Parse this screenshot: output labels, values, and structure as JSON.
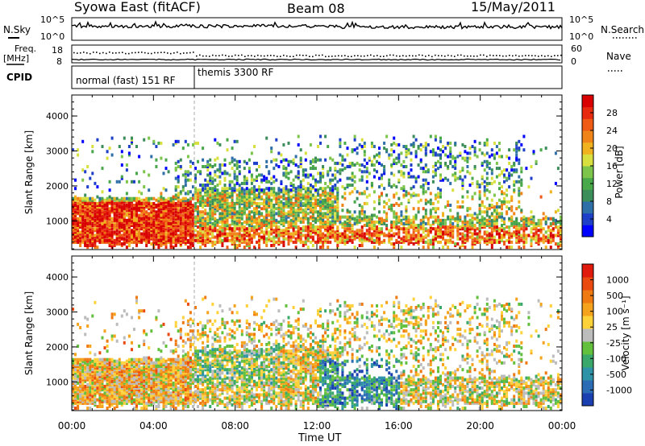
{
  "header": {
    "station": "Syowa East (fitACF)",
    "beam": "Beam 08",
    "date": "15/May/2011"
  },
  "panels": {
    "nsky": {
      "left_label": "N.Sky",
      "right_label": "N.Search",
      "ticks": [
        "10^5",
        "10^0"
      ]
    },
    "freq": {
      "left_label_line1": "Freq.",
      "left_label_line2": "[MHz]",
      "left_ticks": [
        "18",
        "8"
      ],
      "right_ticks": [
        "60",
        "0"
      ],
      "right_label": "Nave"
    },
    "cpid": {
      "label": "CPID",
      "segments": [
        "normal (fast) 151 RF",
        "themis 3300 RF"
      ]
    }
  },
  "chart_data": [
    {
      "type": "heatmap",
      "title": "",
      "xlabel": "Time UT",
      "ylabel": "Slant Range [km]",
      "x_ticks": [
        "00:00",
        "04:00",
        "08:00",
        "12:00",
        "16:00",
        "20:00",
        "00:00"
      ],
      "y_ticks": [
        "1000",
        "2000",
        "3000",
        "4000"
      ],
      "ylim": [
        180,
        4600
      ],
      "colorbar": {
        "label": "Power [dB]",
        "ticks": [
          "28",
          "24",
          "20",
          "16",
          "12",
          "8",
          "4"
        ],
        "colors": [
          "#0000ff",
          "#1e3fc8",
          "#2e6fa8",
          "#3b8e5a",
          "#49a84a",
          "#7cc44a",
          "#d8e040",
          "#f0b21e",
          "#f08418",
          "#ef5a14",
          "#e82a10",
          "#d80000"
        ]
      }
    },
    {
      "type": "heatmap",
      "title": "",
      "xlabel": "Time UT",
      "ylabel": "Slant Range [km]",
      "x_ticks": [
        "00:00",
        "04:00",
        "08:00",
        "12:00",
        "16:00",
        "20:00",
        "00:00"
      ],
      "y_ticks": [
        "1000",
        "2000",
        "3000",
        "4000"
      ],
      "ylim": [
        180,
        4600
      ],
      "colorbar": {
        "label": "Velocity [m s⁻¹]",
        "ticks": [
          "1000",
          "500",
          "100",
          "25",
          "-25",
          "-100",
          "-500",
          "-1000"
        ],
        "colors": [
          "#1a3fb0",
          "#2c6cb4",
          "#2f93a8",
          "#3aa86a",
          "#62c03c",
          "#bcbcbc",
          "#ffd23a",
          "#f5a21c",
          "#f07a12",
          "#ea4a10",
          "#e01a0c"
        ]
      }
    }
  ],
  "x_axis_label": "Time UT"
}
